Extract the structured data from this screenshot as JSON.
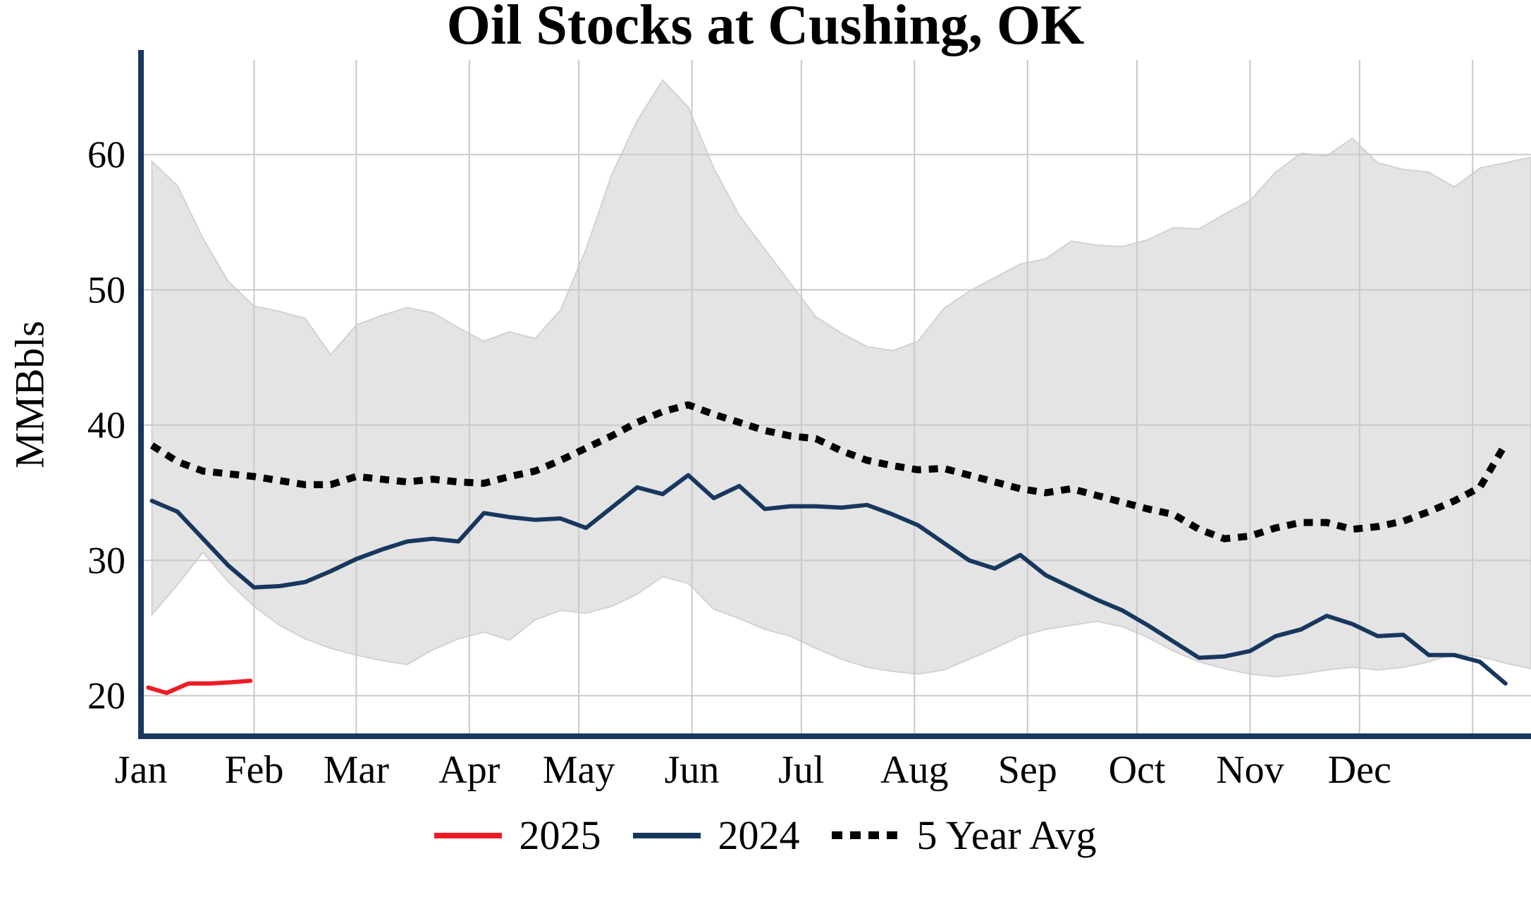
{
  "title": "Oil Stocks at Cushing, OK",
  "y_axis_label": "MMBbls",
  "colors": {
    "red": "#ed1c24",
    "navy": "#17375e",
    "avg": "#000000",
    "band": "#e4e4e4",
    "band_edge": "#d2d2d2",
    "grid": "#c9c9c9",
    "spine": "#17375e"
  },
  "legend": {
    "items": [
      {
        "label": "2025",
        "style": "solid",
        "color": "#ed1c24"
      },
      {
        "label": "2024",
        "style": "solid",
        "color": "#17375e"
      },
      {
        "label": "5 Year Avg",
        "style": "dotted",
        "color": "#000000"
      }
    ]
  },
  "chart_data": {
    "type": "line",
    "title": "Oil Stocks at Cushing, OK",
    "xlabel": "",
    "ylabel": "MMBbls",
    "ylim": [
      17,
      67
    ],
    "xlim_days": [
      0,
      381
    ],
    "yticks": [
      20,
      30,
      40,
      50,
      60
    ],
    "grid": true,
    "legend_position": "bottom-center",
    "month_labels": [
      "Jan",
      "Feb",
      "Mar",
      "Apr",
      "May",
      "Jun",
      "Jul",
      "Aug",
      "Sep",
      "Oct",
      "Nov",
      "Dec"
    ],
    "month_start_days": [
      0,
      31,
      59,
      90,
      120,
      151,
      181,
      212,
      243,
      273,
      304,
      334,
      365
    ],
    "band": {
      "name": "5 Year Range",
      "x_days": [
        3,
        10,
        17,
        24,
        31,
        38,
        45,
        52,
        59,
        66,
        73,
        80,
        87,
        94,
        101,
        108,
        115,
        122,
        129,
        136,
        143,
        150,
        157,
        164,
        171,
        178,
        185,
        192,
        199,
        206,
        213,
        220,
        227,
        234,
        241,
        248,
        255,
        262,
        269,
        276,
        283,
        290,
        297,
        304,
        311,
        318,
        325,
        332,
        339,
        346,
        353,
        360,
        367,
        374,
        381
      ],
      "upper": [
        59.5,
        57.7,
        53.8,
        50.6,
        48.8,
        48.4,
        47.9,
        45.2,
        47.4,
        48.1,
        48.7,
        48.3,
        47.2,
        46.2,
        46.9,
        46.4,
        48.5,
        53.0,
        58.5,
        62.5,
        65.5,
        63.5,
        59.0,
        55.5,
        53.0,
        50.5,
        48.0,
        46.8,
        45.8,
        45.5,
        46.2,
        48.6,
        49.9,
        50.9,
        51.9,
        52.3,
        53.6,
        53.3,
        53.2,
        53.7,
        54.6,
        54.5,
        55.6,
        56.6,
        58.7,
        60.1,
        59.9,
        61.2,
        59.4,
        58.9,
        58.7,
        57.6,
        59.0,
        59.4,
        59.8
      ],
      "lower": [
        26.0,
        28.2,
        30.6,
        28.4,
        26.6,
        25.2,
        24.2,
        23.5,
        23.0,
        22.6,
        22.3,
        23.4,
        24.2,
        24.7,
        24.1,
        25.6,
        26.3,
        26.1,
        26.6,
        27.5,
        28.8,
        28.3,
        26.4,
        25.7,
        24.9,
        24.4,
        23.5,
        22.7,
        22.1,
        21.8,
        21.6,
        21.9,
        22.7,
        23.5,
        24.4,
        24.9,
        25.2,
        25.5,
        25.1,
        24.3,
        23.3,
        22.5,
        22.0,
        21.6,
        21.4,
        21.6,
        21.9,
        22.1,
        21.9,
        22.1,
        22.5,
        23.1,
        22.9,
        22.4,
        22.0
      ]
    },
    "series": [
      {
        "name": "2025",
        "color": "#ed1c24",
        "dash": "solid",
        "x_days": [
          2,
          7,
          13,
          19,
          25,
          30
        ],
        "values": [
          20.6,
          20.2,
          20.9,
          20.9,
          21.0,
          21.1
        ]
      },
      {
        "name": "2024",
        "color": "#17375e",
        "dash": "solid",
        "x_days": [
          3,
          10,
          17,
          24,
          31,
          38,
          45,
          52,
          59,
          66,
          73,
          80,
          87,
          94,
          101,
          108,
          115,
          122,
          129,
          136,
          143,
          150,
          157,
          164,
          171,
          178,
          185,
          192,
          199,
          206,
          213,
          220,
          227,
          234,
          241,
          248,
          255,
          262,
          269,
          276,
          283,
          290,
          297,
          304,
          311,
          318,
          325,
          332,
          339,
          346,
          353,
          360,
          367,
          374
        ],
        "values": [
          34.4,
          33.6,
          31.6,
          29.6,
          28.0,
          28.1,
          28.4,
          29.2,
          30.1,
          30.8,
          31.4,
          31.6,
          31.4,
          33.5,
          33.2,
          33.0,
          33.1,
          32.4,
          33.9,
          35.4,
          34.9,
          36.3,
          34.6,
          35.5,
          33.8,
          34.0,
          34.0,
          33.9,
          34.1,
          33.4,
          32.6,
          31.3,
          30.0,
          29.4,
          30.4,
          28.9,
          28.0,
          27.1,
          26.3,
          25.2,
          24.0,
          22.8,
          22.9,
          23.3,
          24.4,
          24.9,
          25.9,
          25.3,
          24.4,
          24.5,
          23.0,
          23.0,
          22.5,
          20.9
        ]
      },
      {
        "name": "5 Year Avg",
        "color": "#000000",
        "dash": "dotted",
        "x_days": [
          3,
          10,
          17,
          24,
          31,
          38,
          45,
          52,
          59,
          66,
          73,
          80,
          87,
          94,
          101,
          108,
          115,
          122,
          129,
          136,
          143,
          150,
          157,
          164,
          171,
          178,
          185,
          192,
          199,
          206,
          213,
          220,
          227,
          234,
          241,
          248,
          255,
          262,
          269,
          276,
          283,
          290,
          297,
          304,
          311,
          318,
          325,
          332,
          339,
          346,
          353,
          360,
          367,
          374
        ],
        "values": [
          38.5,
          37.3,
          36.6,
          36.4,
          36.2,
          35.9,
          35.6,
          35.6,
          36.2,
          36.0,
          35.8,
          36.0,
          35.8,
          35.7,
          36.2,
          36.6,
          37.4,
          38.3,
          39.2,
          40.2,
          41.0,
          41.5,
          40.8,
          40.2,
          39.6,
          39.2,
          39.0,
          38.1,
          37.4,
          37.0,
          36.7,
          36.8,
          36.3,
          35.8,
          35.3,
          35.0,
          35.3,
          34.8,
          34.3,
          33.8,
          33.4,
          32.3,
          31.6,
          31.8,
          32.4,
          32.8,
          32.8,
          32.3,
          32.5,
          32.9,
          33.6,
          34.4,
          35.4,
          38.6
        ]
      }
    ]
  }
}
